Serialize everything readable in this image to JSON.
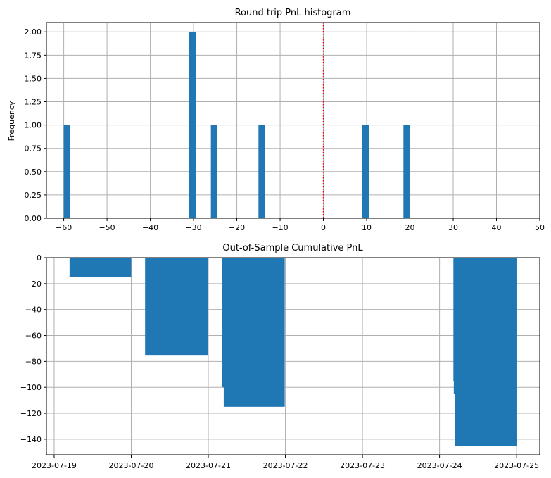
{
  "chart_data": [
    {
      "type": "bar",
      "title": "Round trip PnL histogram",
      "xlabel": "",
      "ylabel": "Frequency",
      "xlim": [
        -64,
        50
      ],
      "ylim": [
        0,
        2.1
      ],
      "xticks": [
        -60,
        -50,
        -40,
        -30,
        -20,
        -10,
        0,
        10,
        20,
        30,
        40,
        50
      ],
      "xtick_labels": [
        "−60",
        "−50",
        "−40",
        "−30",
        "−20",
        "−10",
        "0",
        "10",
        "20",
        "30",
        "40",
        "50"
      ],
      "yticks": [
        0.0,
        0.25,
        0.5,
        0.75,
        1.0,
        1.25,
        1.5,
        1.75,
        2.0
      ],
      "ytick_labels": [
        "0.00",
        "0.25",
        "0.50",
        "0.75",
        "1.00",
        "1.25",
        "1.50",
        "1.75",
        "2.00"
      ],
      "bin_width": 1.5,
      "bins": [
        {
          "left": -60,
          "count": 1
        },
        {
          "left": -31,
          "count": 2
        },
        {
          "left": -26,
          "count": 1
        },
        {
          "left": -15,
          "count": 1
        },
        {
          "left": 9,
          "count": 1
        },
        {
          "left": 18.5,
          "count": 1
        }
      ],
      "vline": {
        "x": 0,
        "color": "#ff0000",
        "style": "dotted"
      },
      "grid": true,
      "bar_color": "#1f77b4"
    },
    {
      "type": "bar",
      "title": "Out-of-Sample Cumulative PnL",
      "xlabel": "",
      "ylabel": "",
      "xlim": [
        "2023-07-18T21:36",
        "2023-07-25T07:12"
      ],
      "ylim": [
        -152,
        0
      ],
      "xticks": [
        "2023-07-19",
        "2023-07-20",
        "2023-07-21",
        "2023-07-22",
        "2023-07-23",
        "2023-07-24",
        "2023-07-25"
      ],
      "xtick_labels": [
        "2023-07-19",
        "2023-07-20",
        "2023-07-21",
        "2023-07-22",
        "2023-07-23",
        "2023-07-24",
        "2023-07-25"
      ],
      "yticks": [
        0,
        -20,
        -40,
        -60,
        -80,
        -100,
        -120,
        -140
      ],
      "ytick_labels": [
        "0",
        "−20",
        "−40",
        "−60",
        "−80",
        "−100",
        "−120",
        "−140"
      ],
      "bars": [
        {
          "start": "2023-07-19T04:48",
          "end": "2023-07-20T00:00",
          "value": -15
        },
        {
          "start": "2023-07-20T04:19",
          "end": "2023-07-20T23:56",
          "value": -75
        },
        {
          "start": "2023-07-21T04:19",
          "end": "2023-07-21T07:26",
          "value": -100
        },
        {
          "start": "2023-07-21T04:48",
          "end": "2023-07-21T23:48",
          "value": -115
        },
        {
          "start": "2023-07-24T04:19",
          "end": "2023-07-24T04:48",
          "value": -95
        },
        {
          "start": "2023-07-24T04:26",
          "end": "2023-07-24T05:31",
          "value": -105
        },
        {
          "start": "2023-07-24T04:48",
          "end": "2023-07-24T23:56",
          "value": -145
        },
        {
          "start": "2023-07-24T05:31",
          "end": "2023-07-24T23:56",
          "value": -145
        }
      ],
      "grid": true,
      "bar_color": "#1f77b4"
    }
  ]
}
